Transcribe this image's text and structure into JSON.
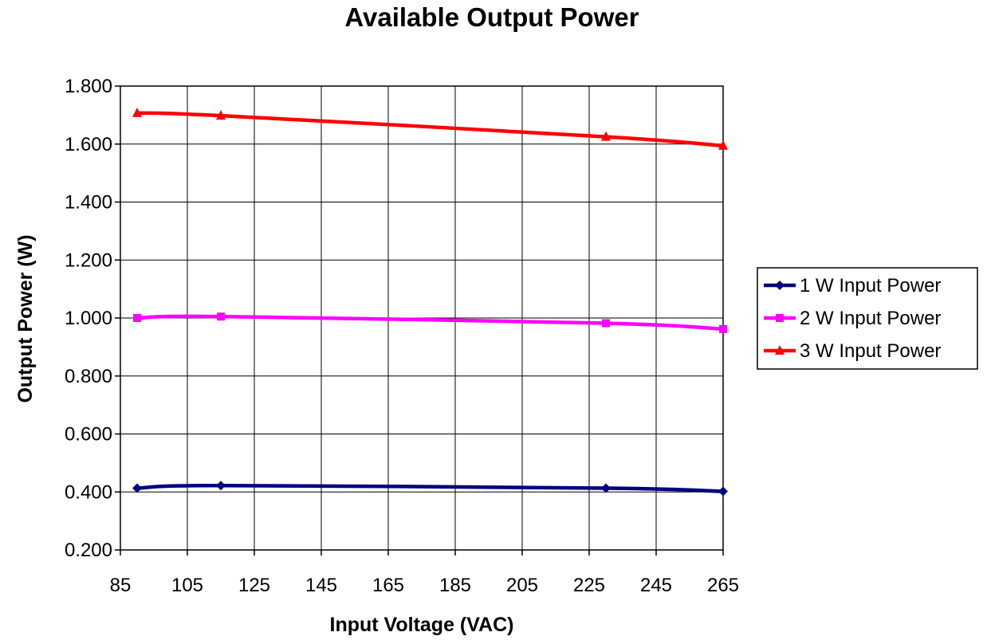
{
  "chart_data": {
    "type": "line",
    "title": "Available Output Power",
    "xlabel": "Input Voltage (VAC)",
    "ylabel": "Output Power (W)",
    "xlim": [
      85,
      265
    ],
    "ylim": [
      0.2,
      1.8
    ],
    "x_ticks": [
      "85",
      "105",
      "125",
      "145",
      "165",
      "185",
      "205",
      "225",
      "245",
      "265"
    ],
    "y_ticks": [
      "0.200",
      "0.400",
      "0.600",
      "0.800",
      "1.000",
      "1.200",
      "1.400",
      "1.600",
      "1.800"
    ],
    "grid": true,
    "legend_position": "right",
    "series": [
      {
        "name": "1 W Input Power",
        "color": "#000080",
        "marker": "diamond",
        "x": [
          90,
          115,
          230,
          265
        ],
        "values": [
          0.413,
          0.422,
          0.413,
          0.402
        ]
      },
      {
        "name": "2 W Input Power",
        "color": "#FF00FF",
        "marker": "square",
        "x": [
          90,
          115,
          230,
          265
        ],
        "values": [
          1.0,
          1.005,
          0.982,
          0.962
        ]
      },
      {
        "name": "3 W Input Power",
        "color": "#FF0000",
        "marker": "triangle",
        "x": [
          90,
          115,
          230,
          265
        ],
        "values": [
          1.707,
          1.698,
          1.625,
          1.594
        ]
      }
    ]
  }
}
